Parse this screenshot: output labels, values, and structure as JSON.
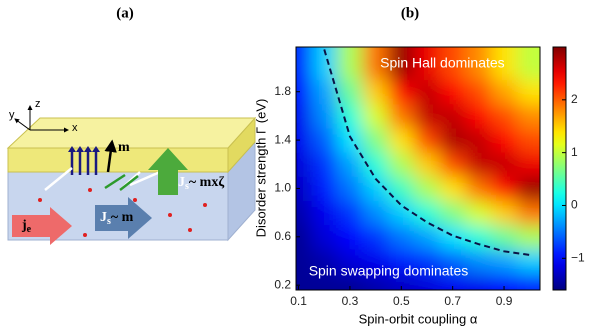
{
  "panel_labels": [
    "(a)",
    "(b)"
  ],
  "diagram": {
    "axes": [
      "x",
      "y",
      "z"
    ],
    "m": "m",
    "je": {
      "main": "j",
      "sub": "e"
    },
    "js_hall": {
      "main": "J",
      "sub": "s",
      "rest": "~ mxζ"
    },
    "js_swap": {
      "main": "J",
      "sub": "s",
      "rest": "~ m"
    }
  },
  "chart_data": {
    "type": "heatmap",
    "xlabel": "Spin-orbit coupling α",
    "ylabel": "Disorder strength Γ (eV)",
    "x": [
      0.1,
      0.2,
      0.3,
      0.4,
      0.5,
      0.6,
      0.7,
      0.8,
      0.9,
      1.0
    ],
    "y": [
      0.2,
      0.4,
      0.6,
      0.8,
      1.0,
      1.2,
      1.4,
      1.6,
      1.8,
      2.0
    ],
    "z": [
      [
        -1.5,
        -1.5,
        -1.5,
        -1.4,
        -1.3,
        -1.2,
        -1.1,
        -1.1,
        -1.0,
        -0.9
      ],
      [
        -1.5,
        -1.4,
        -1.2,
        -1.1,
        -0.9,
        -0.8,
        -0.6,
        -0.4,
        -0.3,
        -0.1
      ],
      [
        -1.5,
        -1.2,
        -1.0,
        -0.8,
        -0.5,
        -0.3,
        0.0,
        0.3,
        0.6,
        0.9
      ],
      [
        -1.4,
        -1.1,
        -0.8,
        -0.4,
        -0.1,
        0.3,
        0.7,
        1.1,
        1.5,
        1.9
      ],
      [
        -1.3,
        -0.9,
        -0.5,
        -0.1,
        0.4,
        0.9,
        1.4,
        1.9,
        2.4,
        2.9
      ],
      [
        -1.2,
        -0.8,
        -0.3,
        0.3,
        0.9,
        1.5,
        2.1,
        2.7,
        2.7,
        2.5
      ],
      [
        -1.1,
        -0.6,
        0.0,
        0.7,
        1.4,
        2.1,
        2.8,
        2.7,
        2.4,
        2.1
      ],
      [
        -1.1,
        -0.4,
        0.3,
        1.1,
        1.9,
        2.7,
        2.7,
        2.4,
        2.1,
        1.8
      ],
      [
        -1.0,
        -0.3,
        0.6,
        1.5,
        2.4,
        2.7,
        2.4,
        2.1,
        1.7,
        1.4
      ],
      [
        -0.9,
        -0.1,
        0.9,
        1.9,
        2.9,
        2.5,
        2.1,
        1.8,
        1.4,
        1.0
      ]
    ],
    "xlim": [
      0.09,
      1.04
    ],
    "ylim": [
      0.16,
      2.17
    ],
    "xticks": [
      0.1,
      0.3,
      0.5,
      0.7,
      0.9
    ],
    "yticks": [
      0.2,
      0.6,
      {
        "value": 1,
        "label": "1.0"
      },
      1.4,
      1.8
    ],
    "colormap": "jet",
    "clim": [
      -1.6,
      3
    ],
    "cticks": [
      {
        "value": -1,
        "label": "−1"
      },
      0,
      1,
      2
    ],
    "contour": {
      "x": [
        0.2,
        0.3,
        0.4,
        0.5,
        0.6,
        0.7,
        0.8,
        0.9,
        1.0
      ],
      "y": [
        2.15,
        1.43,
        1.08,
        0.86,
        0.72,
        0.61,
        0.54,
        0.48,
        0.45
      ],
      "color": "#0a1446"
    },
    "annotations": [
      {
        "text": "Spin Hall dominates",
        "x": 0.66,
        "y": 2.03
      },
      {
        "text": "Spin swapping dominates",
        "x": 0.45,
        "y": 0.31
      }
    ]
  }
}
